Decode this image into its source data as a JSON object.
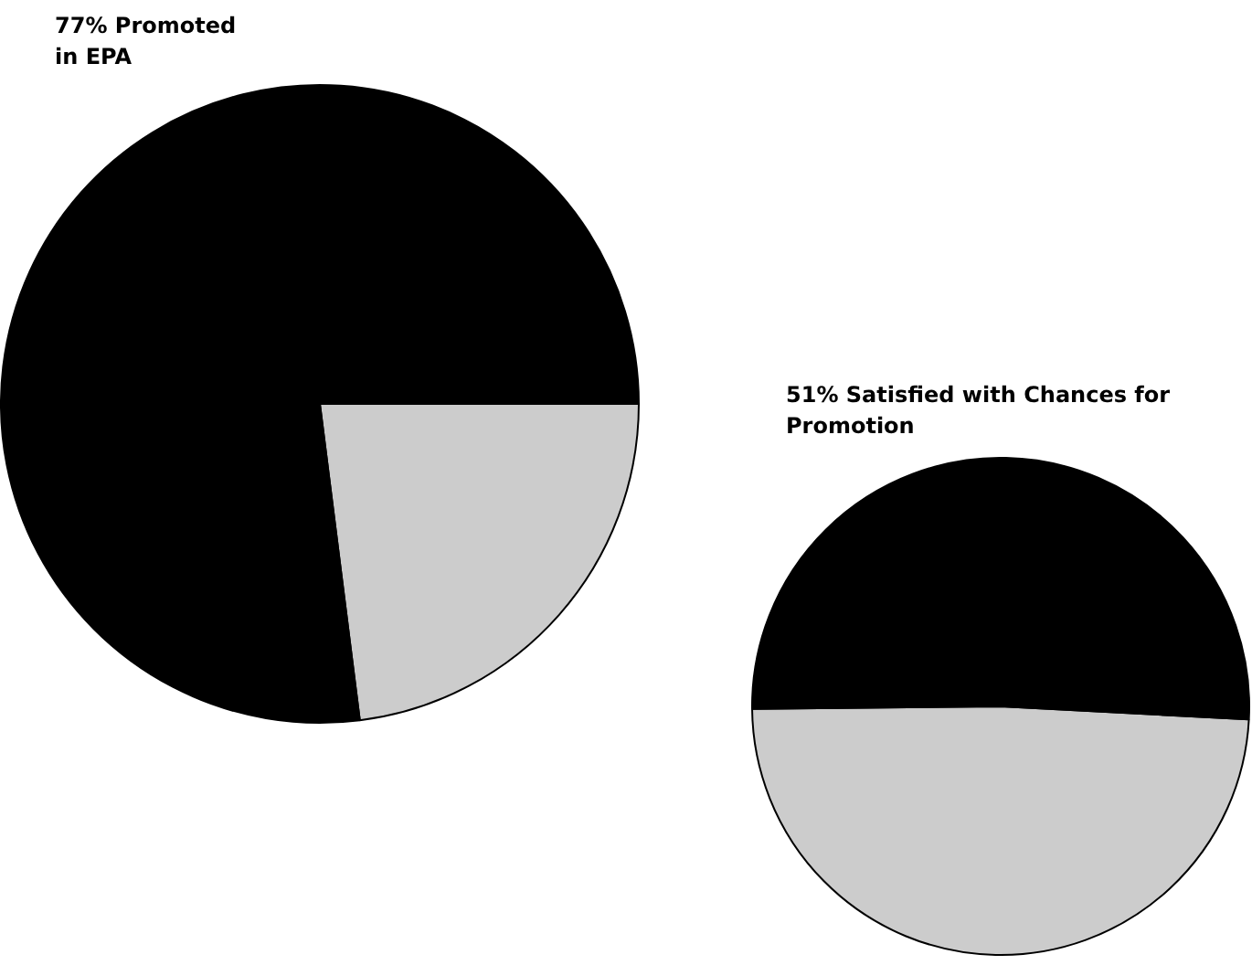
{
  "chart_data": [
    {
      "type": "pie",
      "title": "77% Promoted in EPA",
      "categories": [
        null,
        null
      ],
      "values": [
        23,
        77
      ],
      "colors": [
        "#cccccc",
        "#000000"
      ],
      "legend": false
    },
    {
      "type": "pie",
      "title": "51% Satisfied with Chances for Promotion",
      "categories": [
        null,
        null
      ],
      "values": [
        49,
        51
      ],
      "colors": [
        "#cccccc",
        "#000000"
      ],
      "legend": false
    }
  ]
}
